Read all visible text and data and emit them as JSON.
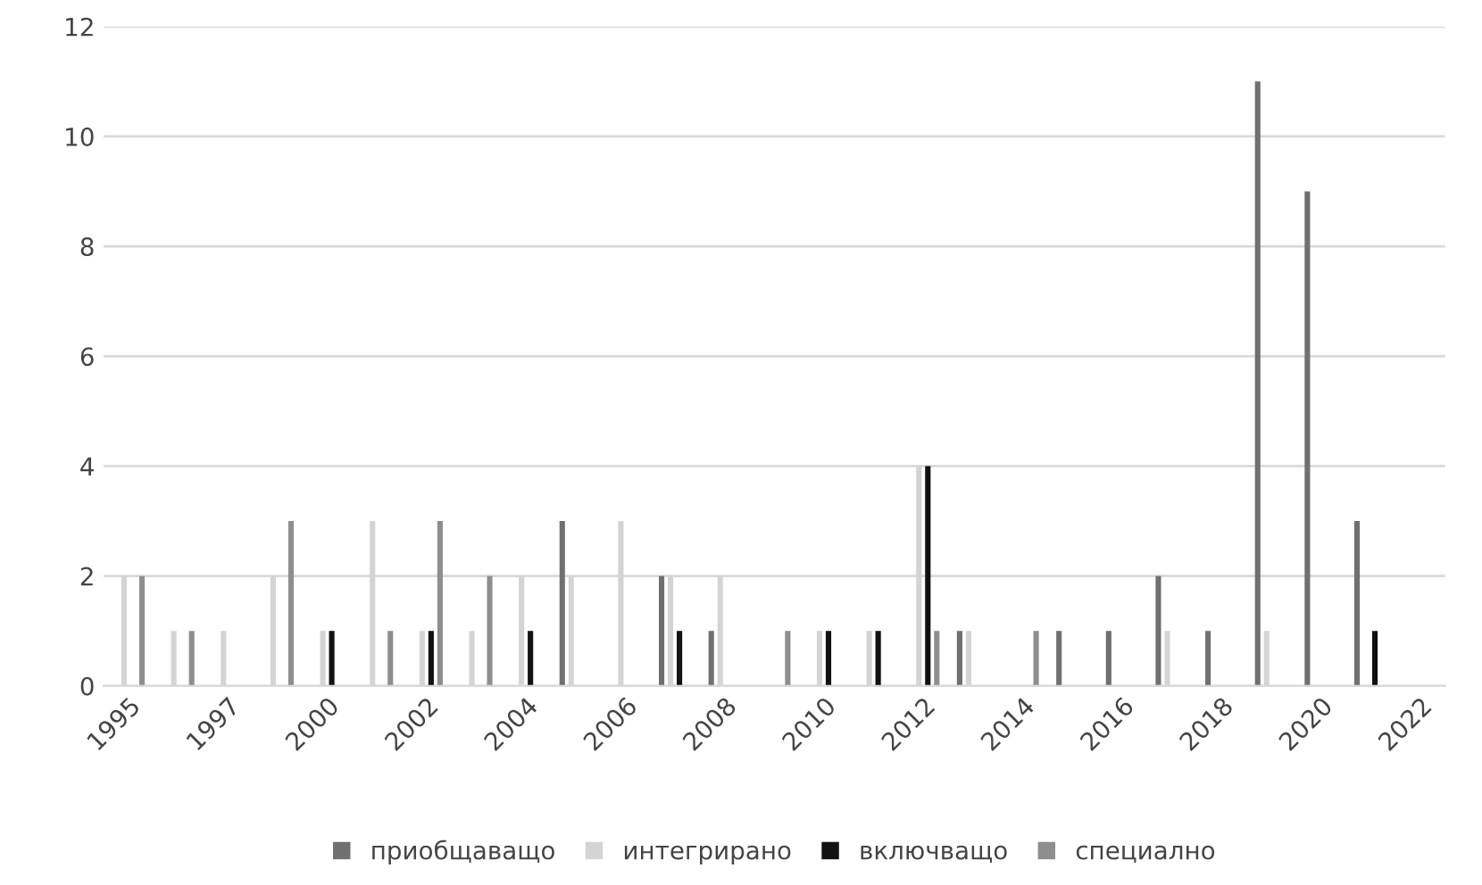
{
  "chart_data": {
    "type": "bar",
    "categories": [
      "1995",
      null,
      "1997",
      null,
      "2000",
      null,
      "2002",
      null,
      "2004",
      null,
      "2006",
      null,
      "2008",
      null,
      "2010",
      null,
      "2012",
      null,
      "2014",
      null,
      "2016",
      null,
      "2018",
      null,
      "2020",
      null,
      "2022"
    ],
    "series": [
      {
        "name": "приобщаващо",
        "color": "#707070",
        "values": [
          null,
          null,
          null,
          null,
          null,
          null,
          null,
          null,
          null,
          3,
          null,
          2,
          1,
          null,
          null,
          null,
          null,
          1,
          null,
          1,
          1,
          2,
          1,
          11,
          9,
          3,
          null
        ]
      },
      {
        "name": "интегрирано",
        "color": "#d4d4d4",
        "values": [
          2,
          1,
          1,
          2,
          1,
          3,
          1,
          1,
          2,
          2,
          3,
          2,
          2,
          null,
          1,
          1,
          4,
          1,
          null,
          null,
          null,
          1,
          null,
          1,
          null,
          null,
          null
        ]
      },
      {
        "name": "включващо",
        "color": "#111111",
        "values": [
          null,
          null,
          null,
          null,
          1,
          null,
          1,
          null,
          1,
          null,
          null,
          1,
          null,
          null,
          1,
          1,
          4,
          null,
          null,
          null,
          null,
          null,
          null,
          null,
          null,
          1,
          null
        ]
      },
      {
        "name": "специално",
        "color": "#8e8e8e",
        "values": [
          2,
          1,
          null,
          3,
          null,
          1,
          3,
          2,
          null,
          null,
          null,
          null,
          null,
          1,
          null,
          null,
          1,
          null,
          1,
          null,
          null,
          null,
          null,
          null,
          null,
          null,
          null
        ]
      }
    ],
    "ylim": [
      0,
      12
    ],
    "yticks": [
      0,
      2,
      4,
      6,
      8,
      10,
      12
    ],
    "grid": "y",
    "legend": "bottom"
  }
}
